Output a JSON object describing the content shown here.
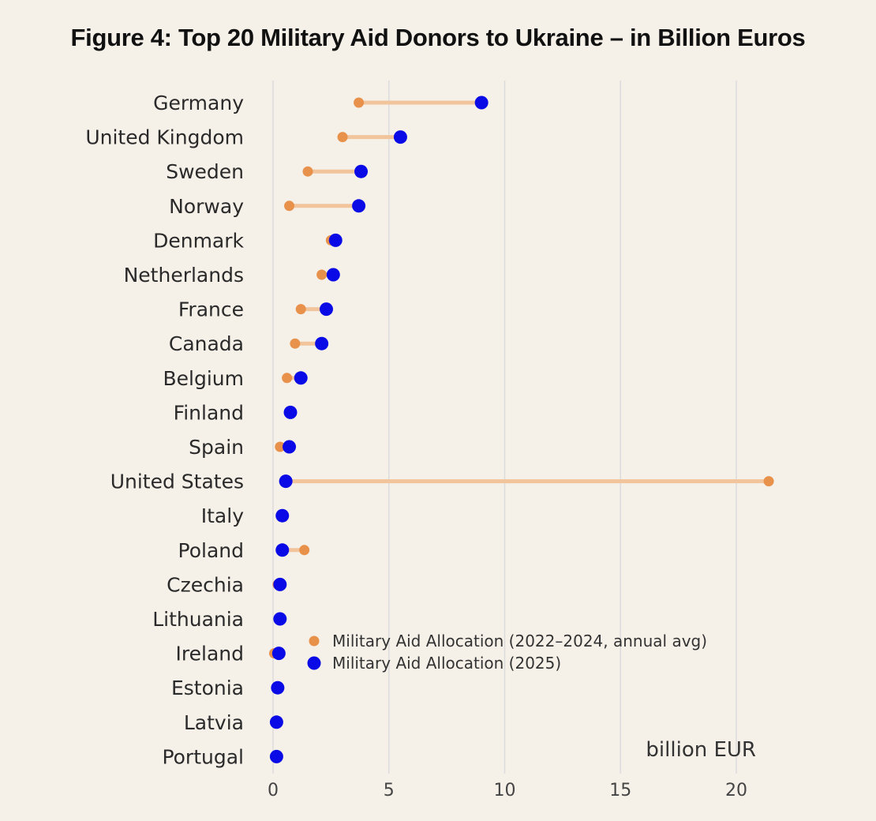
{
  "title": "Figure 4: Top 20 Military Aid Donors to Ukraine – in Billion Euros",
  "chart_data": {
    "type": "dumbbell",
    "xlabel": "billion EUR",
    "xlim": [
      0,
      21.5
    ],
    "xticks": [
      0,
      5,
      10,
      15,
      20
    ],
    "grid": "vertical",
    "categories": [
      "Germany",
      "United Kingdom",
      "Sweden",
      "Norway",
      "Denmark",
      "Netherlands",
      "France",
      "Canada",
      "Belgium",
      "Finland",
      "Spain",
      "United States",
      "Italy",
      "Poland",
      "Czechia",
      "Lithuania",
      "Ireland",
      "Estonia",
      "Latvia",
      "Portugal"
    ],
    "series": [
      {
        "name": "Military Aid Allocation (2022–2024, annual avg)",
        "color": "#e8914a",
        "values": [
          3.7,
          3.0,
          1.5,
          0.7,
          2.5,
          2.1,
          1.2,
          0.95,
          0.6,
          0.7,
          0.3,
          21.4,
          0.45,
          1.35,
          0.2,
          0.25,
          0.05,
          0.2,
          0.1,
          0.1
        ]
      },
      {
        "name": "Military Aid Allocation (2025)",
        "color": "#0a0ae6",
        "values": [
          9.0,
          5.5,
          3.8,
          3.7,
          2.7,
          2.6,
          2.3,
          2.1,
          1.2,
          0.75,
          0.7,
          0.55,
          0.4,
          0.4,
          0.3,
          0.3,
          0.25,
          0.2,
          0.15,
          0.15
        ]
      }
    ],
    "legend_position": "center-left"
  }
}
